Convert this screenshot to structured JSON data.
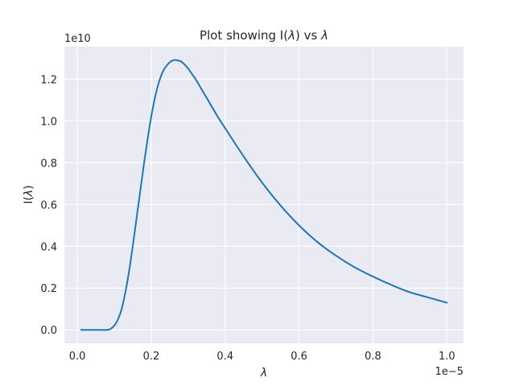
{
  "chart_data": {
    "type": "line",
    "title": {
      "prefix": "Plot showing I(",
      "symbol1": "λ",
      "middle": ") vs ",
      "symbol2": "λ"
    },
    "xlabel": "λ",
    "ylabel": {
      "prefix": "I(",
      "symbol": "λ",
      "suffix": ")"
    },
    "x_offset_label": "1e−5",
    "y_offset_label": "1e10",
    "x_scale_factor": 1e-05,
    "y_scale_factor": 10000000000.0,
    "xlim": [
      -0.035,
      1.045
    ],
    "ylim": [
      -0.0645,
      1.355
    ],
    "x_ticks": [
      0.0,
      0.2,
      0.4,
      0.6,
      0.8,
      1.0
    ],
    "x_tick_labels": [
      "0.0",
      "0.2",
      "0.4",
      "0.6",
      "0.8",
      "1.0"
    ],
    "y_ticks": [
      0.0,
      0.2,
      0.4,
      0.6,
      0.8,
      1.0,
      1.2
    ],
    "y_tick_labels": [
      "0.0",
      "0.2",
      "0.4",
      "0.6",
      "0.8",
      "1.0",
      "1.2"
    ],
    "grid": true,
    "style": "seaborn-darkgrid",
    "background_color": "#eaeaf2",
    "grid_color": "#ffffff",
    "text_color": "#262626",
    "series": [
      {
        "color": "#1f77b4",
        "x": [
          0.01,
          0.05,
          0.08,
          0.09,
          0.1,
          0.11,
          0.12,
          0.13,
          0.14,
          0.15,
          0.16,
          0.17,
          0.18,
          0.19,
          0.2,
          0.21,
          0.22,
          0.23,
          0.24,
          0.25,
          0.26,
          0.27,
          0.28,
          0.29,
          0.3,
          0.31,
          0.32,
          0.33,
          0.35,
          0.38,
          0.4,
          0.45,
          0.5,
          0.55,
          0.6,
          0.65,
          0.7,
          0.75,
          0.8,
          0.85,
          0.9,
          0.95,
          1.0
        ],
        "y": [
          0.0,
          0.0,
          0.0,
          0.005,
          0.02,
          0.05,
          0.1,
          0.18,
          0.28,
          0.4,
          0.53,
          0.66,
          0.79,
          0.91,
          1.02,
          1.11,
          1.18,
          1.23,
          1.26,
          1.28,
          1.29,
          1.29,
          1.285,
          1.27,
          1.25,
          1.225,
          1.2,
          1.17,
          1.11,
          1.02,
          0.965,
          0.83,
          0.705,
          0.595,
          0.5,
          0.42,
          0.355,
          0.3,
          0.255,
          0.215,
          0.18,
          0.155,
          0.13
        ]
      }
    ]
  }
}
